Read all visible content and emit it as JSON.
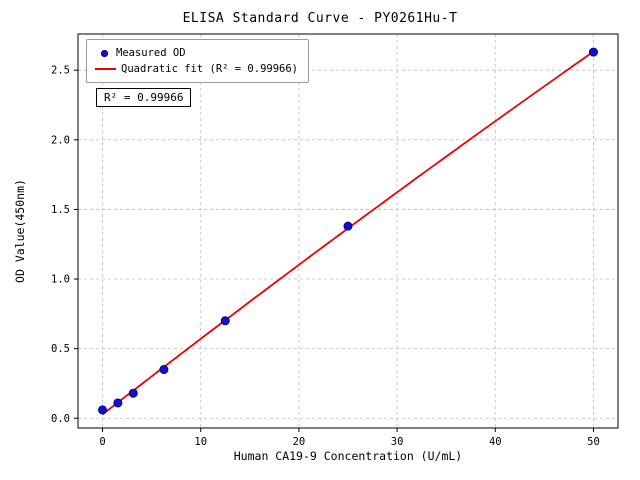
{
  "chart_data": {
    "type": "scatter",
    "title": "ELISA Standard Curve - PY0261Hu-T",
    "xlabel": "Human CA19-9 Concentration (U/mL)",
    "ylabel": "OD Value(450nm)",
    "xlim": [
      -2.5,
      52.5
    ],
    "ylim": [
      -0.07,
      2.76
    ],
    "x_ticks": [
      0,
      10,
      20,
      30,
      40,
      50
    ],
    "y_ticks": [
      0.0,
      0.5,
      1.0,
      1.5,
      2.0,
      2.5
    ],
    "grid": true,
    "grid_style": "dashed",
    "grid_color": "#bdbdbd",
    "legend_position": "upper left",
    "annotation": "R² = 0.99966",
    "series": [
      {
        "name": "Measured OD",
        "type": "scatter",
        "color": "#1010cd",
        "edge_color": "#00008b",
        "x": [
          0,
          1.56,
          3.13,
          6.25,
          12.5,
          25,
          50
        ],
        "y": [
          0.06,
          0.11,
          0.18,
          0.35,
          0.7,
          1.38,
          2.63
        ]
      },
      {
        "name": "Quadratic fit (R² = 0.99966)",
        "type": "line",
        "color": "#ee0000",
        "fit": "quadratic",
        "x_range": [
          0,
          50
        ]
      }
    ]
  }
}
